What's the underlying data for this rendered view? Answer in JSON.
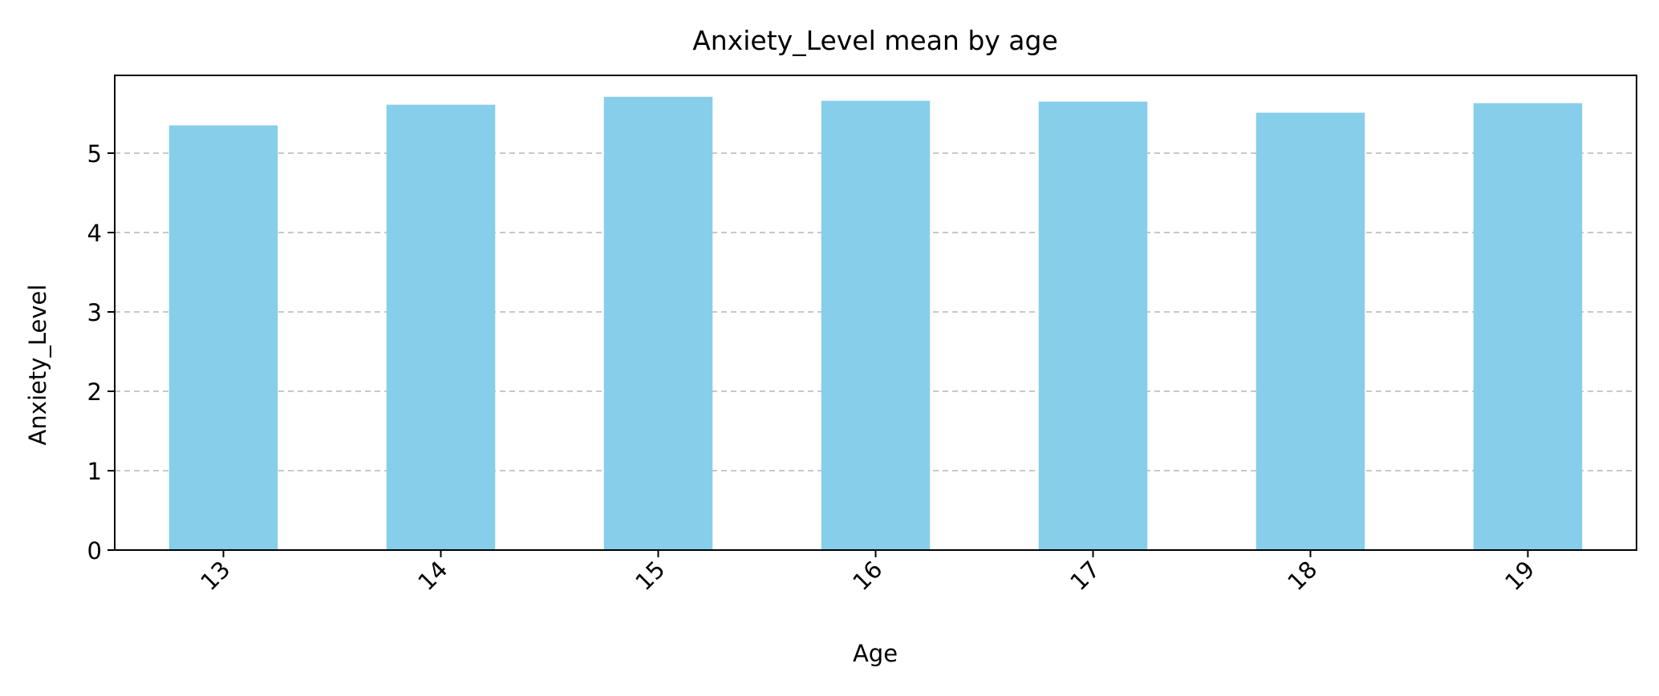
{
  "chart_data": {
    "type": "bar",
    "title": "Anxiety_Level mean by age",
    "xlabel": "Age",
    "ylabel": "Anxiety_Level",
    "categories": [
      "13",
      "14",
      "15",
      "16",
      "17",
      "18",
      "19"
    ],
    "values": [
      5.35,
      5.61,
      5.71,
      5.66,
      5.65,
      5.51,
      5.63
    ],
    "ylim": [
      0,
      5.98
    ],
    "yticks": [
      0,
      1,
      2,
      3,
      4,
      5
    ],
    "grid": {
      "y": true,
      "x": false,
      "style": "dashed"
    },
    "xtick_rotation": 45,
    "colors": {
      "bar": "#87CEEB",
      "grid": "#c8c8c8",
      "axis": "#000000"
    }
  }
}
